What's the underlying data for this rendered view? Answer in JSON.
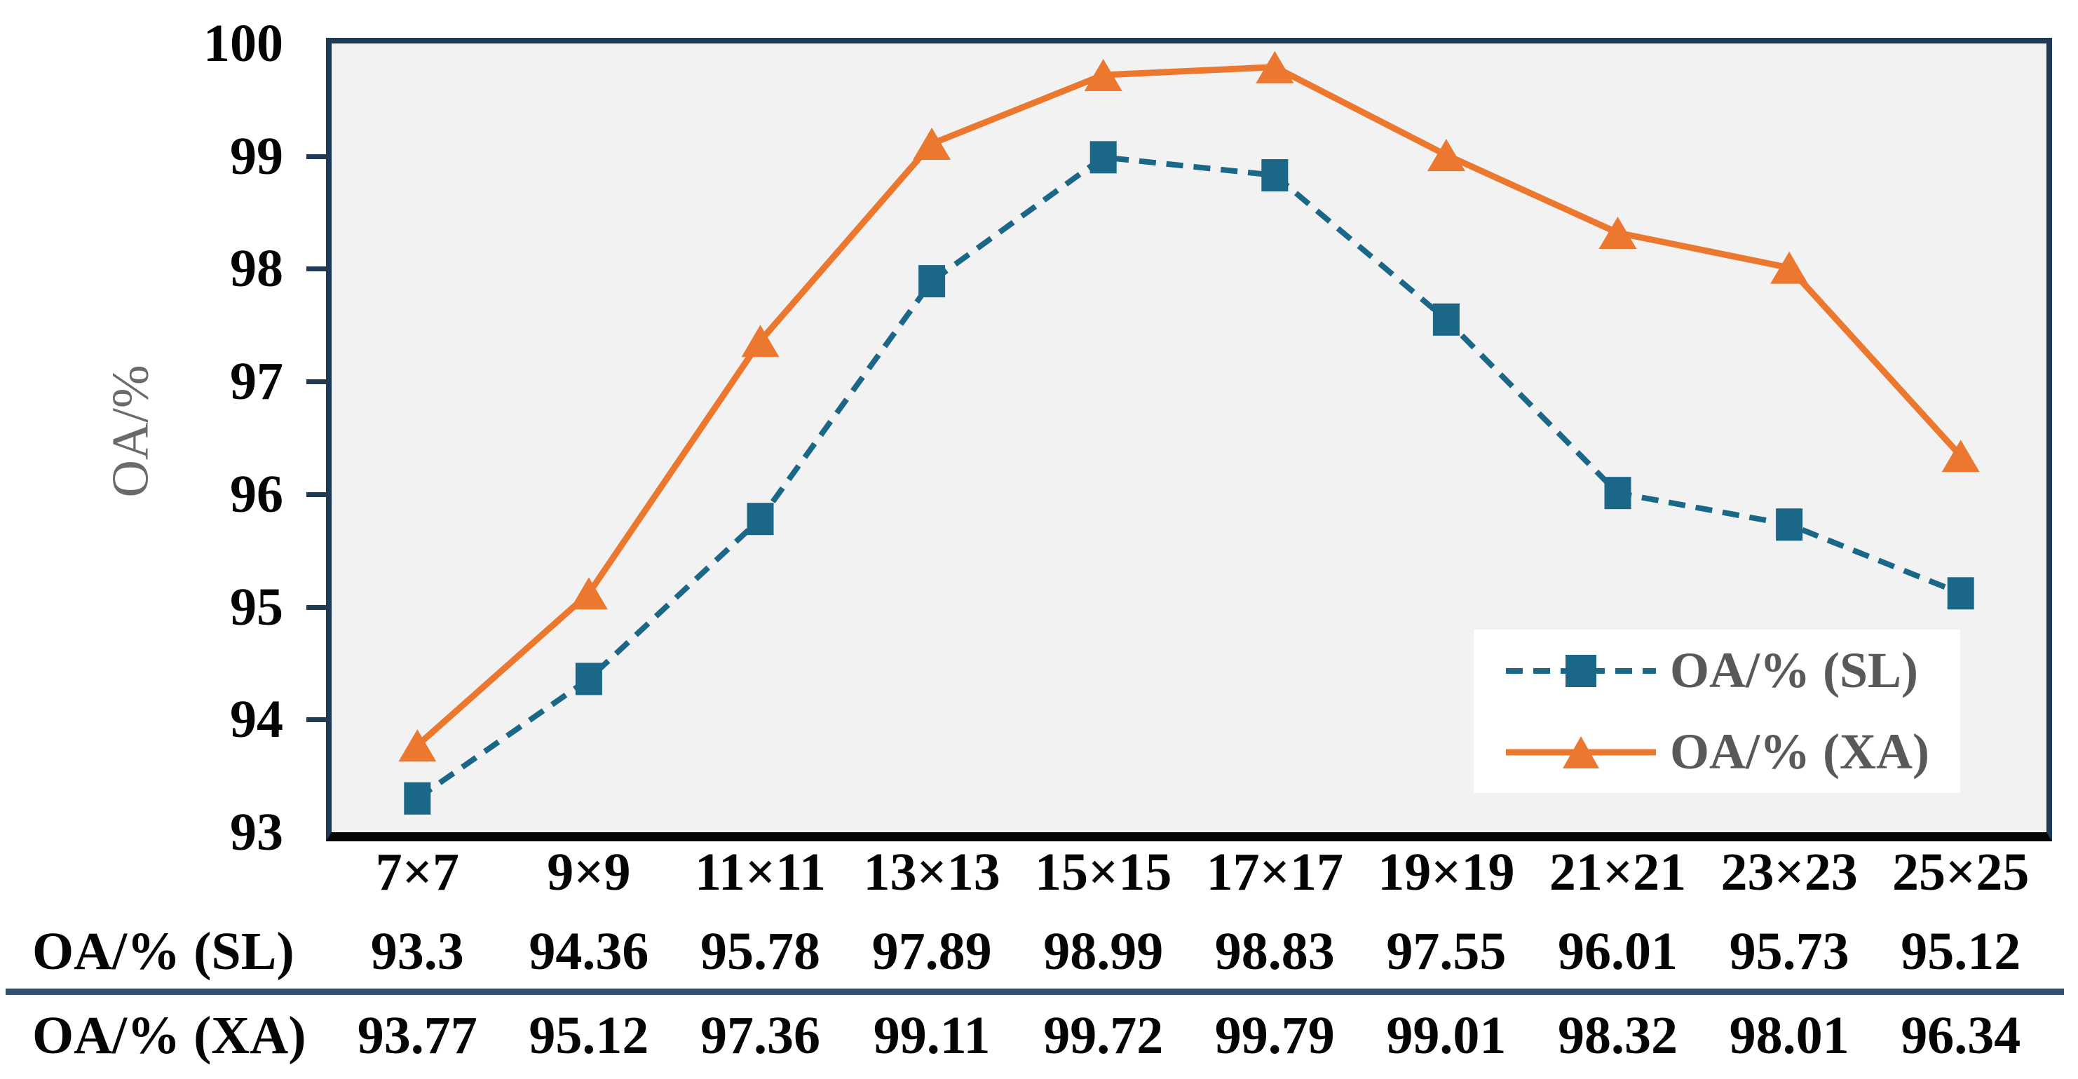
{
  "chart_data": {
    "type": "line",
    "categories": [
      "7×7",
      "9×9",
      "11×11",
      "13×13",
      "15×15",
      "17×17",
      "19×19",
      "21×21",
      "23×23",
      "25×25"
    ],
    "series": [
      {
        "name": "OA/% (SL)",
        "values": [
          93.3,
          94.36,
          95.78,
          97.89,
          98.99,
          98.83,
          97.55,
          96.01,
          95.73,
          95.12
        ],
        "color": "#1B6788",
        "line_style": "dashed",
        "marker": "square"
      },
      {
        "name": "OA/% (XA)",
        "values": [
          93.77,
          95.12,
          97.36,
          99.11,
          99.72,
          99.79,
          99.01,
          98.32,
          98.01,
          96.34
        ],
        "color": "#EC782F",
        "line_style": "solid",
        "marker": "triangle"
      }
    ],
    "title": "",
    "xlabel": "",
    "ylabel": "OA/%",
    "ylim": [
      93,
      100
    ],
    "y_ticks": [
      100,
      99,
      98,
      97,
      96,
      95,
      94,
      93
    ],
    "grid": false,
    "legend_position": "lower right",
    "plot_background": "#F2F2F2"
  },
  "table": {
    "rows": [
      {
        "label": "OA/% (SL)",
        "values": [
          "93.3",
          "94.36",
          "95.78",
          "97.89",
          "98.99",
          "98.83",
          "97.55",
          "96.01",
          "95.73",
          "95.12"
        ]
      },
      {
        "label": "OA/% (XA)",
        "values": [
          "93.77",
          "95.12",
          "97.36",
          "99.11",
          "99.72",
          "99.79",
          "99.01",
          "98.32",
          "98.01",
          "96.34"
        ]
      }
    ]
  },
  "colors": {
    "sl_series": "#1B6788",
    "xa_series": "#EC782F",
    "plot_frame": "#1F3A54",
    "bottom_axis": "#070707",
    "plot_background": "#F2F2F2",
    "page_background": "#FFFFFF",
    "divider": "#31506C",
    "legend_text": "#595959",
    "y_title_text": "#6A6A6A",
    "tick_text": "#050505"
  }
}
